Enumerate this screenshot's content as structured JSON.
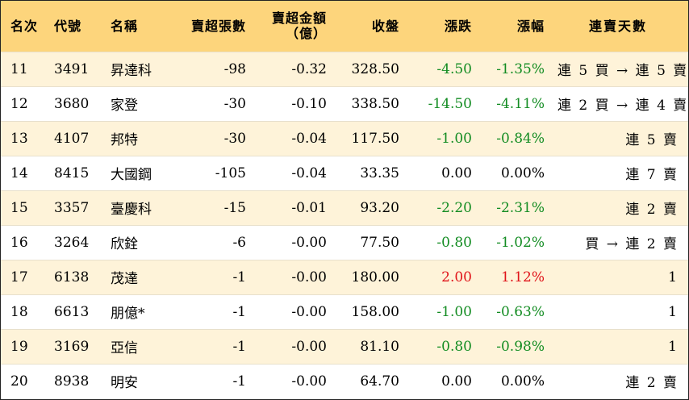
{
  "headers": {
    "rank": "名次",
    "code": "代號",
    "name": "名稱",
    "net_sell_lots": "賣超張數",
    "net_sell_amount": "賣超金額",
    "net_sell_amount_unit": "（億）",
    "close": "收盤",
    "change": "漲跌",
    "change_pct": "漲幅",
    "streak": "連賣天數"
  },
  "colors": {
    "header_bg": "#fdd57c",
    "odd_row_bg": "#fef3d9",
    "even_row_bg": "#ffffff",
    "up": "#e0141a",
    "down": "#138c22"
  },
  "rows": [
    {
      "rank": "11",
      "code": "3491",
      "name": "昇達科",
      "lots": "-98",
      "amount": "-0.32",
      "close": "328.50",
      "change": "-4.50",
      "pct": "-1.35%",
      "streak": "連 5 買 → 連 5 賣",
      "dir": "down"
    },
    {
      "rank": "12",
      "code": "3680",
      "name": "家登",
      "lots": "-30",
      "amount": "-0.10",
      "close": "338.50",
      "change": "-14.50",
      "pct": "-4.11%",
      "streak": "連 2 買 → 連 4 賣",
      "dir": "down"
    },
    {
      "rank": "13",
      "code": "4107",
      "name": "邦特",
      "lots": "-30",
      "amount": "-0.04",
      "close": "117.50",
      "change": "-1.00",
      "pct": "-0.84%",
      "streak": "連 5 賣",
      "dir": "down"
    },
    {
      "rank": "14",
      "code": "8415",
      "name": "大國鋼",
      "lots": "-105",
      "amount": "-0.04",
      "close": "33.35",
      "change": "0.00",
      "pct": "0.00%",
      "streak": "連 7 賣",
      "dir": "flat"
    },
    {
      "rank": "15",
      "code": "3357",
      "name": "臺慶科",
      "lots": "-15",
      "amount": "-0.01",
      "close": "93.20",
      "change": "-2.20",
      "pct": "-2.31%",
      "streak": "連 2 賣",
      "dir": "down"
    },
    {
      "rank": "16",
      "code": "3264",
      "name": "欣銓",
      "lots": "-6",
      "amount": "-0.00",
      "close": "77.50",
      "change": "-0.80",
      "pct": "-1.02%",
      "streak": "買 → 連 2 賣",
      "dir": "down"
    },
    {
      "rank": "17",
      "code": "6138",
      "name": "茂達",
      "lots": "-1",
      "amount": "-0.00",
      "close": "180.00",
      "change": "2.00",
      "pct": "1.12%",
      "streak": "1",
      "dir": "up"
    },
    {
      "rank": "18",
      "code": "6613",
      "name": "朋億*",
      "lots": "-1",
      "amount": "-0.00",
      "close": "158.00",
      "change": "-1.00",
      "pct": "-0.63%",
      "streak": "1",
      "dir": "down"
    },
    {
      "rank": "19",
      "code": "3169",
      "name": "亞信",
      "lots": "-1",
      "amount": "-0.00",
      "close": "81.10",
      "change": "-0.80",
      "pct": "-0.98%",
      "streak": "1",
      "dir": "down"
    },
    {
      "rank": "20",
      "code": "8938",
      "name": "明安",
      "lots": "-1",
      "amount": "-0.00",
      "close": "64.70",
      "change": "0.00",
      "pct": "0.00%",
      "streak": "連 2 賣",
      "dir": "flat"
    }
  ]
}
